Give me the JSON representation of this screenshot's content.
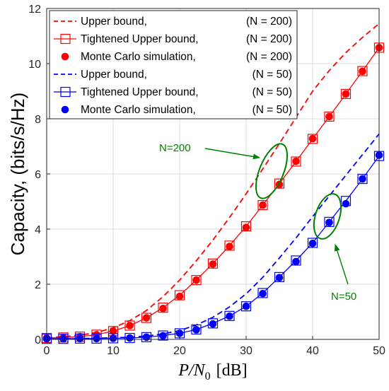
{
  "chart_data": {
    "type": "line",
    "title": "",
    "xlabel": "P/N₀ [dB]",
    "xlabel_main": "P/N",
    "xlabel_sub": "0",
    "xlabel_unit": "[dB]",
    "ylabel": "Capacity, (bits/s/Hz)",
    "xlim": [
      0,
      50
    ],
    "ylim": [
      0,
      12
    ],
    "xticks": [
      0,
      10,
      20,
      30,
      40,
      50
    ],
    "yticks": [
      0,
      2,
      4,
      6,
      8,
      10,
      12
    ],
    "grid": true,
    "legend_position": "top-left",
    "x": [
      0,
      2.5,
      5,
      7.5,
      10,
      12.5,
      15,
      17.5,
      20,
      22.5,
      25,
      27.5,
      30,
      32.5,
      35,
      37.5,
      40,
      42.5,
      45,
      47.5,
      50
    ],
    "series": [
      {
        "name": "Upper bound,",
        "param": "(N = 200)",
        "style": "dashed",
        "color": "#ff0000",
        "values": [
          0.06,
          0.1,
          0.15,
          0.25,
          0.42,
          0.68,
          1.05,
          1.55,
          2.15,
          2.85,
          3.6,
          4.42,
          5.28,
          6.18,
          7.1,
          8.05,
          9.0,
          9.75,
          10.4,
          10.95,
          11.45
        ]
      },
      {
        "name": "Tightened Upper bound,",
        "param": "(N = 200)",
        "style": "solid-square",
        "color": "#ff0000",
        "values": [
          0.05,
          0.07,
          0.1,
          0.17,
          0.3,
          0.5,
          0.78,
          1.15,
          1.6,
          2.15,
          2.75,
          3.4,
          4.1,
          4.87,
          5.65,
          6.45,
          7.27,
          8.08,
          8.9,
          9.73,
          10.58
        ]
      },
      {
        "name": "Monte Carlo simulation,",
        "param": "(N = 200)",
        "style": "dot",
        "color": "#ff0000",
        "values": [
          0.05,
          0.07,
          0.1,
          0.17,
          0.3,
          0.5,
          0.78,
          1.12,
          1.56,
          2.15,
          2.73,
          3.37,
          4.06,
          4.87,
          5.62,
          6.46,
          7.28,
          8.08,
          8.9,
          9.72,
          10.58
        ]
      },
      {
        "name": "Upper bound,",
        "param": "(N = 50)",
        "style": "dashed",
        "color": "#0000ff",
        "values": [
          0.02,
          0.02,
          0.03,
          0.04,
          0.06,
          0.08,
          0.12,
          0.2,
          0.32,
          0.52,
          0.8,
          1.18,
          1.65,
          2.25,
          2.95,
          3.68,
          4.45,
          5.2,
          5.95,
          6.7,
          7.45
        ]
      },
      {
        "name": "Tightened Upper bound,",
        "param": "(N = 50)",
        "style": "solid-square",
        "color": "#0000ff",
        "values": [
          0.02,
          0.02,
          0.03,
          0.03,
          0.04,
          0.05,
          0.08,
          0.14,
          0.22,
          0.36,
          0.58,
          0.85,
          1.2,
          1.68,
          2.26,
          2.86,
          3.5,
          4.26,
          5.02,
          5.82,
          6.65
        ]
      },
      {
        "name": "Monte Carlo simulation,",
        "param": "(N = 50)",
        "style": "dot",
        "color": "#0000ff",
        "values": [
          0.02,
          0.02,
          0.03,
          0.03,
          0.04,
          0.05,
          0.08,
          0.13,
          0.22,
          0.35,
          0.56,
          0.84,
          1.2,
          1.66,
          2.24,
          2.82,
          3.48,
          4.24,
          4.92,
          5.82,
          6.68
        ]
      }
    ],
    "annotations": [
      {
        "text": "N=200",
        "color": "#008000",
        "arrow_to": [
          35,
          5.9
        ]
      },
      {
        "text": "N=50",
        "color": "#008000",
        "arrow_to": [
          42.6,
          4.3
        ]
      }
    ]
  }
}
